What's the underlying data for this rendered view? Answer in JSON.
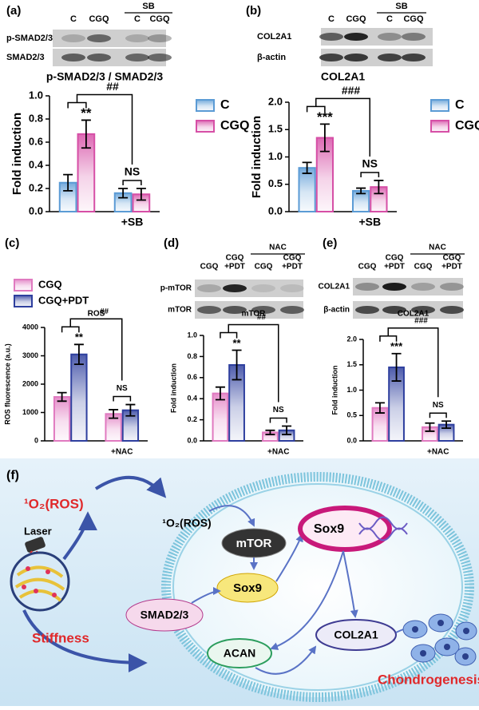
{
  "chart_data": [
    {
      "type": "bar",
      "panel": "(a)",
      "title": "p-SMAD2/3 / SMAD2/3",
      "ylabel": "Fold induction",
      "categories": [
        null,
        "+SB"
      ],
      "series": [
        {
          "name": "C",
          "color": "#5b9bd5",
          "values": [
            0.25,
            0.16
          ],
          "errors": [
            0.07,
            0.04
          ]
        },
        {
          "name": "CGQ",
          "color": "#d64fa6",
          "values": [
            0.67,
            0.15
          ],
          "errors": [
            0.12,
            0.05
          ]
        }
      ],
      "ylim": [
        0,
        1.0
      ],
      "yticks": [
        {
          "value": 0,
          "label": "0.0"
        },
        0.2,
        0.4,
        0.6,
        0.8,
        {
          "value": 1,
          "label": "1.0"
        }
      ],
      "legend": true,
      "significance": "**",
      "group_significance": "##",
      "within_group": "NS"
    },
    {
      "type": "bar",
      "panel": "(b)",
      "title": "COL2A1",
      "ylabel": "Fold induction",
      "categories": [
        null,
        "+SB"
      ],
      "series": [
        {
          "name": "C",
          "color": "#5b9bd5",
          "values": [
            0.8,
            0.38
          ],
          "errors": [
            0.1,
            0.05
          ]
        },
        {
          "name": "CGQ",
          "color": "#d64fa6",
          "values": [
            1.35,
            0.45
          ],
          "errors": [
            0.25,
            0.12
          ]
        }
      ],
      "ylim": [
        0,
        2.0
      ],
      "yticks": [
        {
          "value": 0,
          "label": "0.0"
        },
        0.5,
        {
          "value": 1,
          "label": "1.0"
        },
        1.5,
        {
          "value": 2,
          "label": "2.0"
        }
      ],
      "legend": true,
      "significance": "***",
      "group_significance": "###",
      "within_group": "NS"
    },
    {
      "type": "bar",
      "panel": "(c)",
      "title": "ROS",
      "ylabel": "ROS fluorescence (a.u.)",
      "categories": [
        null,
        "+NAC"
      ],
      "series": [
        {
          "name": "CGQ",
          "color": "#e07ac0",
          "values": [
            1550,
            950
          ],
          "errors": [
            150,
            150
          ]
        },
        {
          "name": "CGQ+PDT",
          "color": "#2e3f9e",
          "values": [
            3050,
            1080
          ],
          "errors": [
            350,
            200
          ]
        }
      ],
      "ylim": [
        0,
        4000
      ],
      "yticks": [
        0,
        1000,
        2000,
        3000,
        4000
      ],
      "legend": true,
      "significance": "**",
      "group_significance": "##",
      "within_group": "NS"
    },
    {
      "type": "bar",
      "panel": "(d)",
      "title": "mTOR",
      "ylabel": "Fold induction",
      "categories": [
        null,
        "+NAC"
      ],
      "series": [
        {
          "name": "CGQ",
          "color": "#e07ac0",
          "values": [
            0.45,
            0.08
          ],
          "errors": [
            0.06,
            0.02
          ]
        },
        {
          "name": "CGQ+PDT",
          "color": "#2e3f9e",
          "values": [
            0.72,
            0.1
          ],
          "errors": [
            0.14,
            0.04
          ]
        }
      ],
      "ylim": [
        0,
        1.0
      ],
      "yticks": [
        {
          "value": 0,
          "label": "0.0"
        },
        0.2,
        0.4,
        0.6,
        0.8,
        {
          "value": 1,
          "label": "1.0"
        }
      ],
      "legend": false,
      "significance": "**",
      "group_significance": "##",
      "within_group": "NS"
    },
    {
      "type": "bar",
      "panel": "(e)",
      "title": "COL2A1",
      "ylabel": "Fold induction",
      "categories": [
        null,
        "+NAC"
      ],
      "series": [
        {
          "name": "CGQ",
          "color": "#e07ac0",
          "values": [
            0.65,
            0.27
          ],
          "errors": [
            0.1,
            0.08
          ]
        },
        {
          "name": "CGQ+PDT",
          "color": "#2e3f9e",
          "values": [
            1.45,
            0.32
          ],
          "errors": [
            0.27,
            0.07
          ]
        }
      ],
      "ylim": [
        0,
        2.0
      ],
      "yticks": [
        {
          "value": 0,
          "label": "0.0"
        },
        0.5,
        {
          "value": 1,
          "label": "1.0"
        },
        1.5,
        {
          "value": 2,
          "label": "2.0"
        }
      ],
      "legend": false,
      "significance": "***",
      "group_significance": "###",
      "within_group": "NS"
    }
  ],
  "blots": [
    {
      "lanes": [
        [
          "C"
        ],
        [
          "CGQ"
        ],
        [
          "C"
        ],
        [
          "CGQ"
        ]
      ],
      "group_label": "SB",
      "rows": [
        "p-SMAD2/3",
        "SMAD2/3"
      ]
    },
    {
      "lanes": [
        [
          "C"
        ],
        [
          "CGQ"
        ],
        [
          "C"
        ],
        [
          "CGQ"
        ]
      ],
      "group_label": "SB",
      "rows": [
        "COL2A1",
        "β-actin"
      ]
    },
    {
      "lanes": [
        [
          "CGQ"
        ],
        [
          "CGQ",
          "+PDT"
        ],
        [
          "CGQ"
        ],
        [
          "CGQ",
          "+PDT"
        ]
      ],
      "group_label": "NAC",
      "rows": [
        "p-mTOR",
        "mTOR"
      ]
    },
    {
      "lanes": [
        [
          "CGQ"
        ],
        [
          "CGQ",
          "+PDT"
        ],
        [
          "CGQ"
        ],
        [
          "CGQ",
          "+PDT"
        ]
      ],
      "group_label": "NAC",
      "rows": [
        "COL2A1",
        "β-actin"
      ]
    }
  ],
  "diagram": {
    "label": "(f)",
    "laser": "Laser",
    "ros_outer": "¹O₂(ROS)",
    "stiffness": "Stiffness",
    "ros_inner": "¹O₂(ROS)",
    "nodes": {
      "mtor": "mTOR",
      "sox9_cyto": "Sox9",
      "sox9_nucleus": "Sox9",
      "smad": "SMAD2/3",
      "acan": "ACAN",
      "col2a1": "COL2A1",
      "outcome": "Chondrogenesis"
    }
  }
}
